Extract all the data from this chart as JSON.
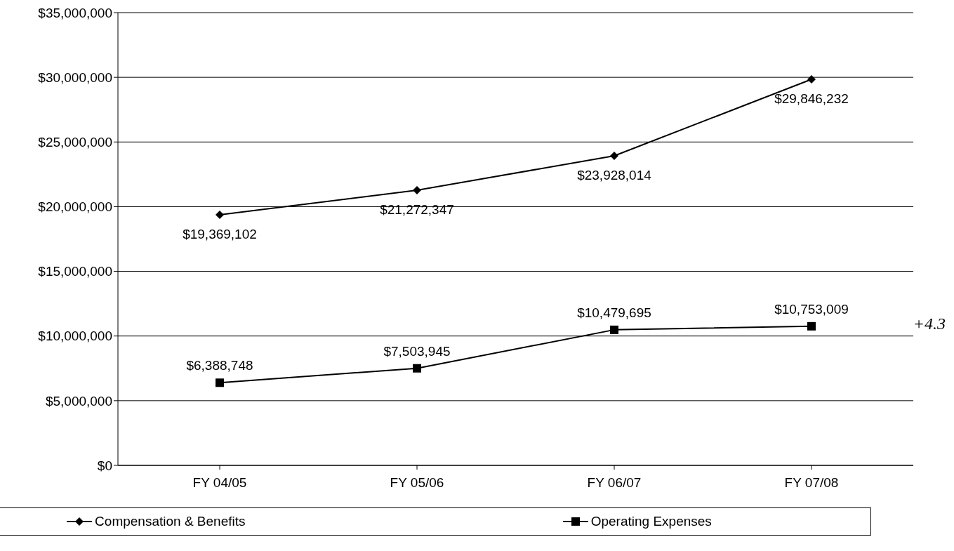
{
  "chart_data": {
    "type": "line",
    "categories": [
      "FY 04/05",
      "FY 05/06",
      "FY 06/07",
      "FY 07/08"
    ],
    "series": [
      {
        "name": "Compensation & Benefits",
        "color": "#000000",
        "marker": "diamond",
        "values": [
          19369102,
          21272347,
          23928014,
          29846232
        ],
        "value_labels": [
          "$19,369,102",
          "$21,272,347",
          "$23,928,014",
          "$29,846,232"
        ]
      },
      {
        "name": "Operating Expenses",
        "color": "#000000",
        "marker": "square",
        "values": [
          6388748,
          7503945,
          10479695,
          10753009
        ],
        "value_labels": [
          "$6,388,748",
          "$7,503,945",
          "$10,479,695",
          "$10,753,009"
        ]
      }
    ],
    "ylim": [
      0,
      35000000
    ],
    "yticks": [
      {
        "value": 0,
        "label": "$0"
      },
      {
        "value": 5000000,
        "label": "$5,000,000"
      },
      {
        "value": 10000000,
        "label": "$10,000,000"
      },
      {
        "value": 15000000,
        "label": "$15,000,000"
      },
      {
        "value": 20000000,
        "label": "$20,000,000"
      },
      {
        "value": 25000000,
        "label": "$25,000,000"
      },
      {
        "value": 30000000,
        "label": "$30,000,000"
      },
      {
        "value": 35000000,
        "label": "$35,000,000"
      }
    ],
    "grid": "y",
    "legend": "bottom",
    "line_style": "solid",
    "annotations": [
      "+4.3"
    ]
  }
}
